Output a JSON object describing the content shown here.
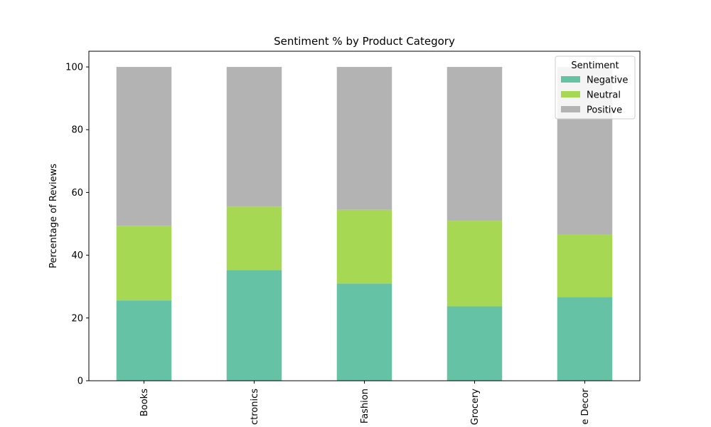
{
  "chart_data": {
    "type": "bar",
    "stacked": true,
    "title": "Sentiment % by Product Category",
    "xlabel": "",
    "ylabel": "Percentage of Reviews",
    "categories": [
      "Books",
      "ctronics",
      "Fashion",
      "Grocery",
      "e Decor"
    ],
    "ylim": [
      0,
      105
    ],
    "yticks": [
      0,
      20,
      40,
      60,
      80,
      100
    ],
    "legend": {
      "title": "Sentiment",
      "position": "top-right"
    },
    "series": [
      {
        "name": "Negative",
        "color": "#66c2a5",
        "values": [
          25.6,
          35.3,
          31.0,
          23.7,
          26.7
        ]
      },
      {
        "name": "Neutral",
        "color": "#a6d854",
        "values": [
          23.8,
          20.2,
          23.5,
          27.3,
          19.9
        ]
      },
      {
        "name": "Positive",
        "color": "#b3b3b3",
        "values": [
          50.6,
          44.5,
          45.5,
          49.0,
          53.4
        ]
      }
    ],
    "grid": false
  }
}
